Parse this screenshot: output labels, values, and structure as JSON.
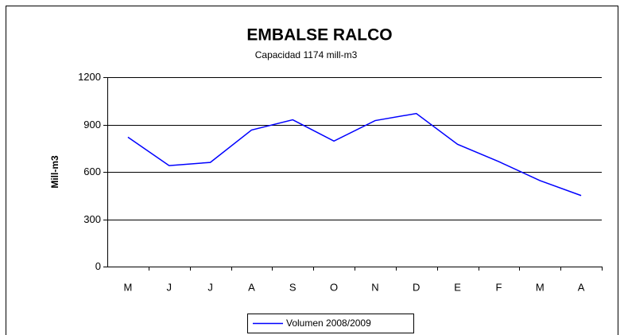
{
  "chart_data": {
    "type": "line",
    "title": "EMBALSE RALCO",
    "subtitle": "Capacidad  1174 mill-m3",
    "y_label": "Mill-m3",
    "categories": [
      "M",
      "J",
      "J",
      "A",
      "S",
      "O",
      "N",
      "D",
      "E",
      "F",
      "M",
      "A"
    ],
    "series": [
      {
        "name": "Volumen  2008/2009",
        "color": "#0000ff",
        "values": [
          820,
          640,
          660,
          865,
          930,
          795,
          925,
          970,
          775,
          665,
          545,
          450
        ]
      }
    ],
    "ylim": [
      0,
      1200
    ],
    "yticks": [
      0,
      300,
      600,
      900,
      1200
    ],
    "grid": true
  }
}
